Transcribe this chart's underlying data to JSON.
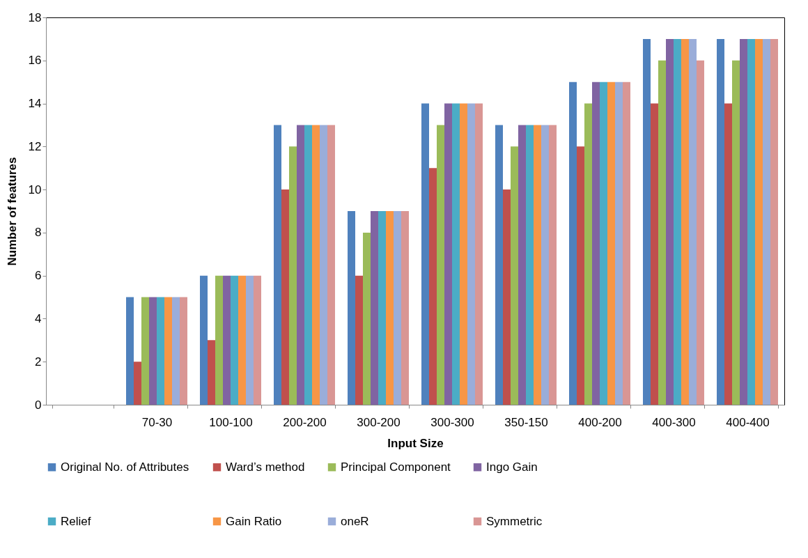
{
  "chart_data": {
    "type": "bar",
    "xlabel": "Input Size",
    "ylabel": "Number of features",
    "categories": [
      null,
      "70-30",
      "100-100",
      "200-200",
      "300-200",
      "300-300",
      "350-150",
      "400-200",
      "400-300",
      "400-400"
    ],
    "ylim": [
      0,
      18
    ],
    "yticks": [
      0,
      2,
      4,
      6,
      8,
      10,
      12,
      14,
      16,
      18
    ],
    "grid": false,
    "legend": "bottom",
    "series": [
      {
        "name": "Original No. of Attributes",
        "color": "#4f81bd",
        "values": [
          null,
          5,
          6,
          13,
          9,
          14,
          13,
          15,
          17,
          17
        ]
      },
      {
        "name": "Ward’s method",
        "color": "#c0504d",
        "values": [
          null,
          2,
          3,
          10,
          6,
          11,
          10,
          12,
          14,
          14
        ]
      },
      {
        "name": "Principal Component",
        "color": "#9bbb59",
        "values": [
          null,
          5,
          6,
          12,
          8,
          13,
          12,
          14,
          16,
          16
        ]
      },
      {
        "name": "Ingo Gain",
        "color": "#8064a2",
        "values": [
          null,
          5,
          6,
          13,
          9,
          14,
          13,
          15,
          17,
          17
        ]
      },
      {
        "name": "Relief",
        "color": "#4bacc6",
        "values": [
          null,
          5,
          6,
          13,
          9,
          14,
          13,
          15,
          17,
          17
        ]
      },
      {
        "name": "Gain Ratio",
        "color": "#f79646",
        "values": [
          null,
          5,
          6,
          13,
          9,
          14,
          13,
          15,
          17,
          17
        ]
      },
      {
        "name": "oneR",
        "color": "#9aadd9",
        "values": [
          null,
          5,
          6,
          13,
          9,
          14,
          13,
          15,
          17,
          17
        ]
      },
      {
        "name": "Symmetric",
        "color": "#d99694",
        "values": [
          null,
          5,
          6,
          13,
          9,
          14,
          13,
          15,
          16,
          17
        ]
      }
    ]
  }
}
